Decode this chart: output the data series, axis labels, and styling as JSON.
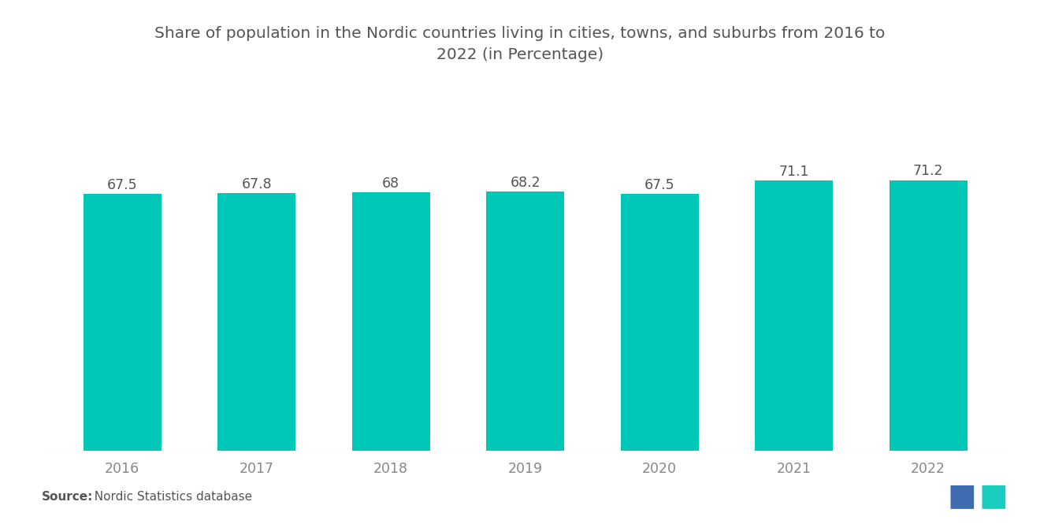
{
  "title_line1": "Share of population in the Nordic countries living in cities, towns, and suburbs from 2016 to",
  "title_line2": "2022 (in Percentage)",
  "years": [
    "2016",
    "2017",
    "2018",
    "2019",
    "2020",
    "2021",
    "2022"
  ],
  "values": [
    67.5,
    67.8,
    68.0,
    68.2,
    67.5,
    71.1,
    71.2
  ],
  "bar_color": "#00C8B8",
  "background_color": "#ffffff",
  "title_color": "#555555",
  "label_color": "#555555",
  "tick_color": "#888888",
  "source_bold": "Source:",
  "source_normal": "  Nordic Statistics database",
  "ylim_min": 0,
  "ylim_max": 80,
  "bar_width": 0.58,
  "title_fontsize": 14.5,
  "label_fontsize": 12.5,
  "tick_fontsize": 12.5,
  "source_fontsize": 11
}
